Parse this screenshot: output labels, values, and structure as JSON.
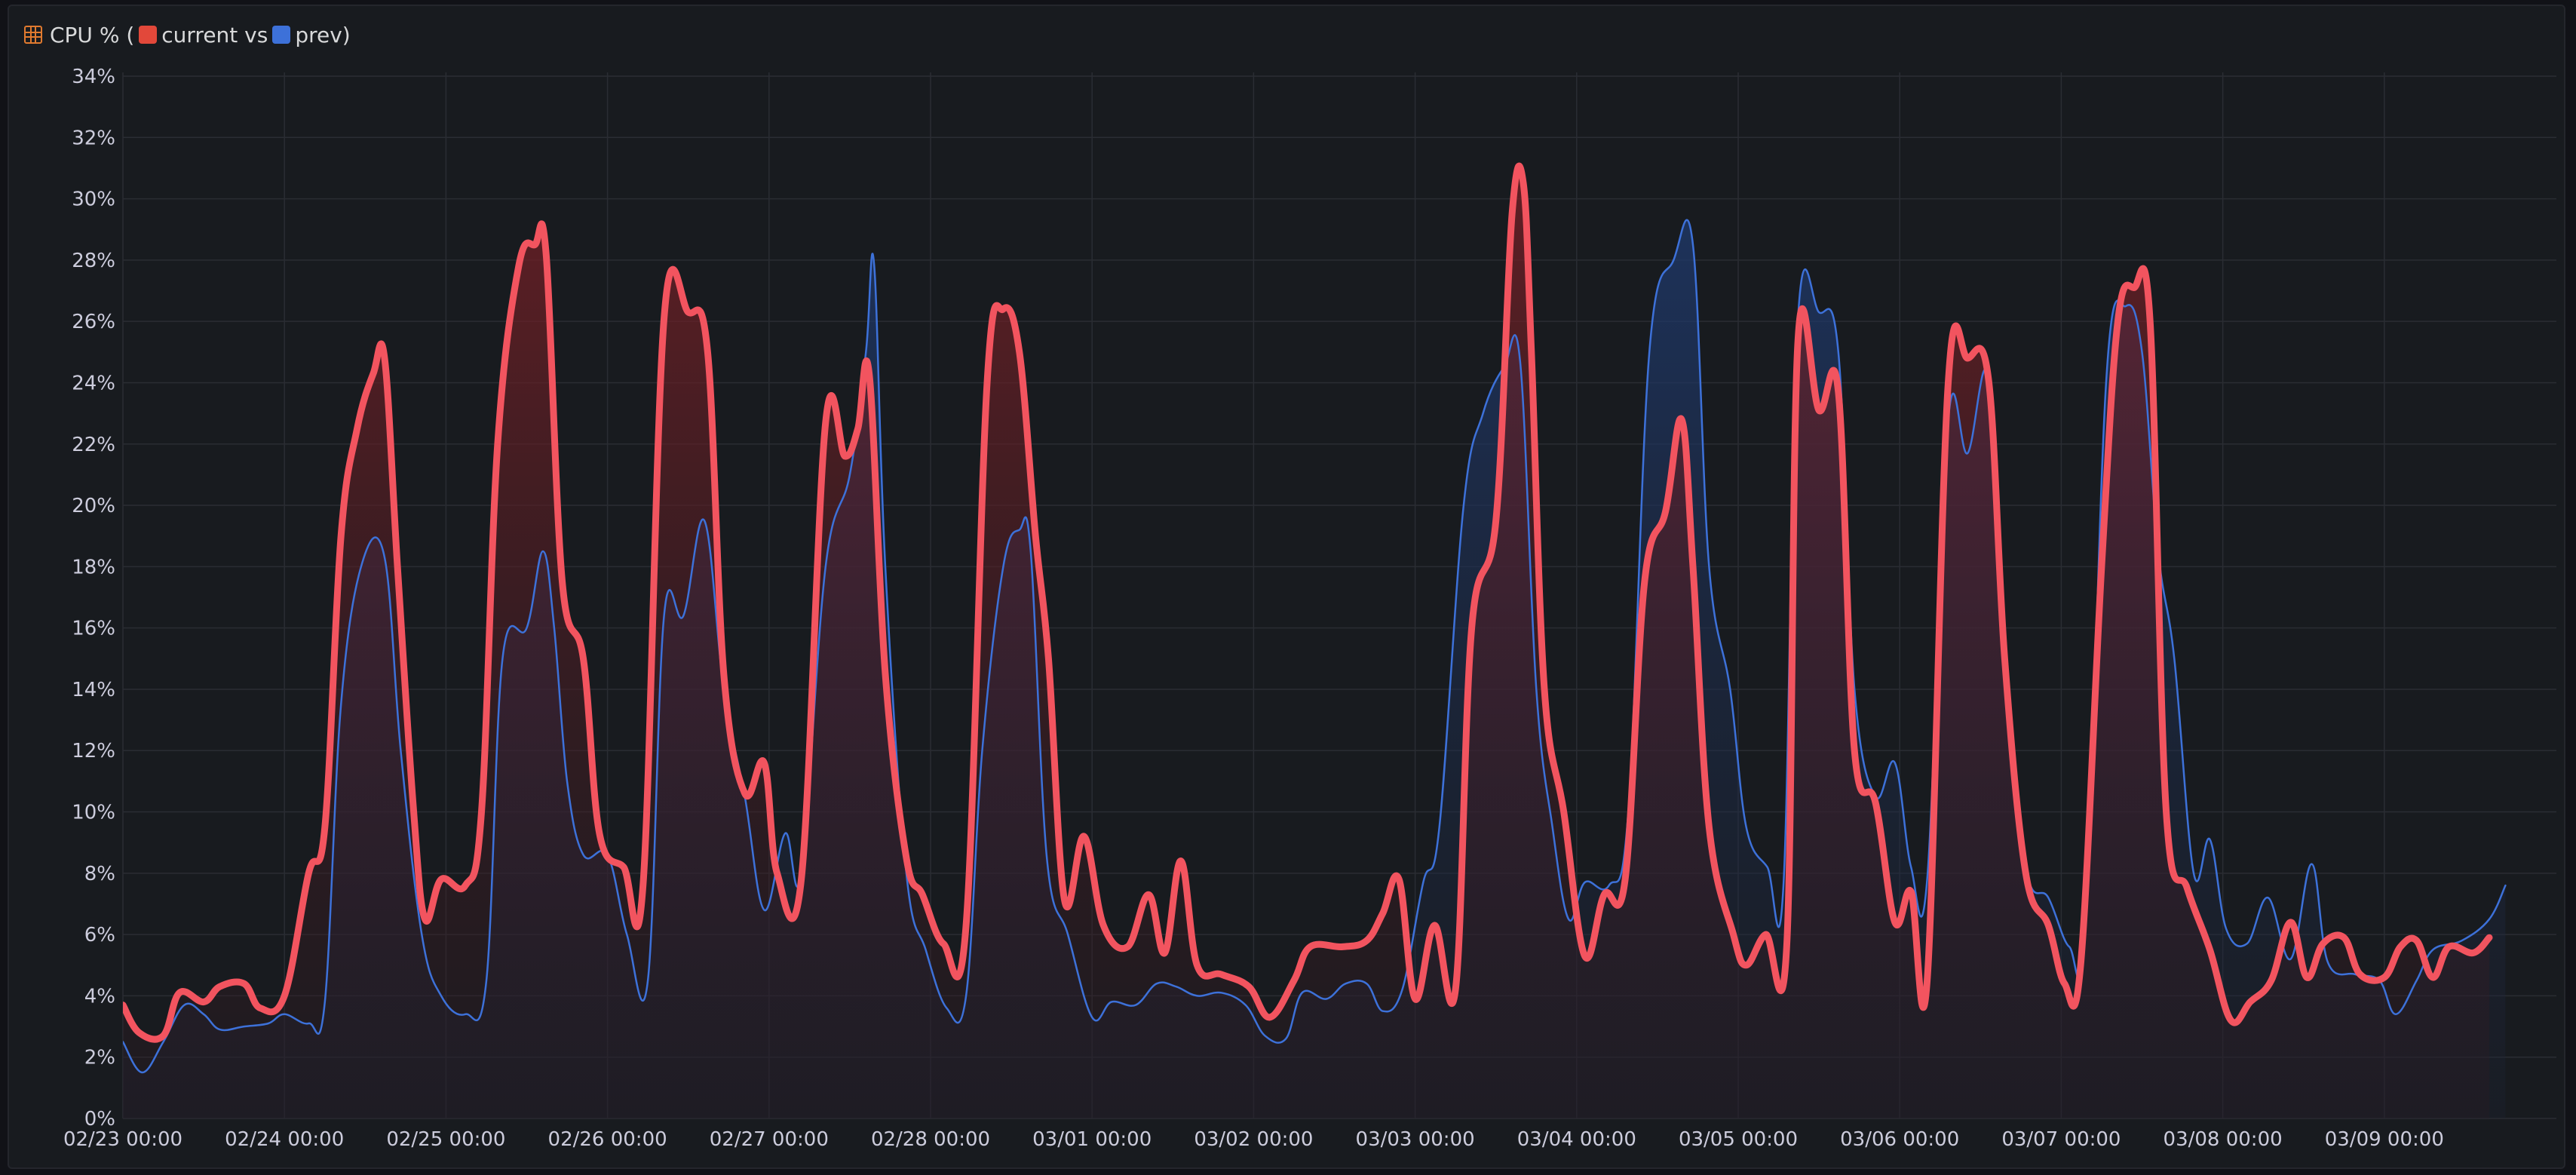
{
  "header": {
    "title_prefix": "CPU % (",
    "series_current_label": "current vs",
    "series_prev_label": "prev)",
    "title_icon": "panel-icon"
  },
  "chart_data": {
    "type": "area",
    "title": "CPU % (current vs prev)",
    "xlabel": "",
    "ylabel": "",
    "ylim": [
      0,
      34
    ],
    "y_ticks": [
      0,
      2,
      4,
      6,
      8,
      10,
      12,
      14,
      16,
      18,
      20,
      22,
      24,
      26,
      28,
      30,
      32,
      34
    ],
    "y_tick_labels": [
      "0%",
      "2%",
      "4%",
      "6%",
      "8%",
      "10%",
      "12%",
      "14%",
      "16%",
      "18%",
      "20%",
      "22%",
      "24%",
      "26%",
      "28%",
      "30%",
      "32%",
      "34%"
    ],
    "x_unit": "days since 02/23 00:00",
    "xlim": [
      0,
      14.9
    ],
    "x_ticks": [
      0,
      1,
      2,
      3,
      4,
      5,
      6,
      7,
      8,
      9,
      10,
      11,
      12,
      13,
      14
    ],
    "x_tick_labels": [
      "02/23 00:00",
      "02/24 00:00",
      "02/25 00:00",
      "02/26 00:00",
      "02/27 00:00",
      "02/28 00:00",
      "03/01 00:00",
      "03/02 00:00",
      "03/03 00:00",
      "03/04 00:00",
      "03/05 00:00",
      "03/06 00:00",
      "03/07 00:00",
      "03/08 00:00",
      "03/09 00:00"
    ],
    "grid": true,
    "legend": "title",
    "colors": {
      "current": "#f2545f",
      "current_fill_top": "#7a2026",
      "prev": "#3d71d9",
      "prev_fill_top": "#1f3a6e",
      "grid": "#2a2d33",
      "background": "#181b1f"
    },
    "series": [
      {
        "name": "current",
        "points": [
          [
            0.0,
            3.7
          ],
          [
            0.1,
            2.8
          ],
          [
            0.25,
            2.7
          ],
          [
            0.35,
            4.1
          ],
          [
            0.5,
            3.8
          ],
          [
            0.6,
            4.3
          ],
          [
            0.75,
            4.4
          ],
          [
            0.85,
            3.6
          ],
          [
            1.0,
            4.0
          ],
          [
            1.15,
            8.0
          ],
          [
            1.25,
            9.5
          ],
          [
            1.35,
            19.0
          ],
          [
            1.45,
            22.5
          ],
          [
            1.55,
            24.3
          ],
          [
            1.62,
            24.8
          ],
          [
            1.7,
            18.0
          ],
          [
            1.8,
            10.0
          ],
          [
            1.87,
            6.5
          ],
          [
            1.97,
            7.8
          ],
          [
            2.12,
            7.6
          ],
          [
            2.22,
            10.0
          ],
          [
            2.32,
            22.0
          ],
          [
            2.45,
            27.8
          ],
          [
            2.55,
            28.5
          ],
          [
            2.62,
            28.2
          ],
          [
            2.72,
            17.5
          ],
          [
            2.85,
            15.0
          ],
          [
            2.95,
            9.3
          ],
          [
            3.1,
            8.2
          ],
          [
            3.22,
            7.6
          ],
          [
            3.35,
            26.1
          ],
          [
            3.5,
            26.3
          ],
          [
            3.62,
            25.0
          ],
          [
            3.72,
            14.5
          ],
          [
            3.85,
            10.6
          ],
          [
            3.97,
            11.6
          ],
          [
            4.05,
            8.0
          ],
          [
            4.2,
            7.8
          ],
          [
            4.35,
            22.7
          ],
          [
            4.47,
            21.6
          ],
          [
            4.55,
            22.5
          ],
          [
            4.62,
            24.3
          ],
          [
            4.72,
            14.5
          ],
          [
            4.85,
            8.5
          ],
          [
            4.95,
            7.3
          ],
          [
            5.08,
            5.7
          ],
          [
            5.22,
            6.3
          ],
          [
            5.35,
            24.0
          ],
          [
            5.45,
            26.4
          ],
          [
            5.55,
            25.0
          ],
          [
            5.65,
            19.0
          ],
          [
            5.73,
            15.0
          ],
          [
            5.83,
            7.1
          ],
          [
            5.95,
            9.2
          ],
          [
            6.07,
            6.3
          ],
          [
            6.22,
            5.6
          ],
          [
            6.35,
            7.3
          ],
          [
            6.45,
            5.4
          ],
          [
            6.55,
            8.4
          ],
          [
            6.65,
            5.0
          ],
          [
            6.8,
            4.7
          ],
          [
            6.97,
            4.3
          ],
          [
            7.1,
            3.3
          ],
          [
            7.25,
            4.5
          ],
          [
            7.35,
            5.6
          ],
          [
            7.55,
            5.6
          ],
          [
            7.7,
            5.8
          ],
          [
            7.8,
            6.7
          ],
          [
            7.9,
            7.8
          ],
          [
            8.0,
            3.9
          ],
          [
            8.12,
            6.3
          ],
          [
            8.25,
            4.2
          ],
          [
            8.35,
            16.0
          ],
          [
            8.5,
            19.5
          ],
          [
            8.6,
            29.5
          ],
          [
            8.67,
            30.5
          ],
          [
            8.72,
            25.0
          ],
          [
            8.8,
            14.0
          ],
          [
            8.92,
            10.0
          ],
          [
            9.05,
            5.3
          ],
          [
            9.17,
            7.3
          ],
          [
            9.3,
            7.8
          ],
          [
            9.42,
            17.5
          ],
          [
            9.55,
            19.8
          ],
          [
            9.65,
            22.8
          ],
          [
            9.72,
            18.0
          ],
          [
            9.82,
            9.5
          ],
          [
            9.97,
            6.0
          ],
          [
            10.05,
            5.0
          ],
          [
            10.17,
            6.0
          ],
          [
            10.3,
            5.6
          ],
          [
            10.37,
            25.4
          ],
          [
            10.5,
            23.1
          ],
          [
            10.62,
            23.7
          ],
          [
            10.72,
            12.0
          ],
          [
            10.85,
            10.3
          ],
          [
            10.97,
            6.4
          ],
          [
            11.07,
            7.4
          ],
          [
            11.17,
            4.5
          ],
          [
            11.3,
            24.0
          ],
          [
            11.42,
            24.8
          ],
          [
            11.55,
            24.1
          ],
          [
            11.65,
            15.0
          ],
          [
            11.78,
            8.0
          ],
          [
            11.92,
            6.3
          ],
          [
            12.02,
            4.4
          ],
          [
            12.12,
            5.0
          ],
          [
            12.25,
            18.0
          ],
          [
            12.35,
            26.0
          ],
          [
            12.45,
            27.1
          ],
          [
            12.55,
            26.0
          ],
          [
            12.65,
            10.0
          ],
          [
            12.78,
            7.5
          ],
          [
            12.92,
            5.5
          ],
          [
            13.05,
            3.2
          ],
          [
            13.17,
            3.8
          ],
          [
            13.3,
            4.5
          ],
          [
            13.42,
            6.4
          ],
          [
            13.52,
            4.6
          ],
          [
            13.62,
            5.7
          ],
          [
            13.75,
            5.9
          ],
          [
            13.85,
            4.7
          ],
          [
            14.0,
            4.6
          ],
          [
            14.1,
            5.6
          ],
          [
            14.2,
            5.8
          ],
          [
            14.3,
            4.6
          ],
          [
            14.4,
            5.6
          ],
          [
            14.55,
            5.4
          ],
          [
            14.65,
            5.9
          ]
        ]
      },
      {
        "name": "prev",
        "points": [
          [
            0.0,
            2.5
          ],
          [
            0.12,
            1.5
          ],
          [
            0.25,
            2.5
          ],
          [
            0.38,
            3.7
          ],
          [
            0.5,
            3.4
          ],
          [
            0.6,
            2.9
          ],
          [
            0.75,
            3.0
          ],
          [
            0.9,
            3.1
          ],
          [
            1.0,
            3.4
          ],
          [
            1.15,
            3.1
          ],
          [
            1.25,
            3.8
          ],
          [
            1.35,
            13.5
          ],
          [
            1.48,
            18.1
          ],
          [
            1.62,
            18.3
          ],
          [
            1.72,
            12.0
          ],
          [
            1.85,
            6.0
          ],
          [
            1.97,
            4.0
          ],
          [
            2.12,
            3.4
          ],
          [
            2.25,
            4.5
          ],
          [
            2.35,
            15.0
          ],
          [
            2.5,
            16.0
          ],
          [
            2.6,
            18.5
          ],
          [
            2.67,
            16.0
          ],
          [
            2.75,
            11.0
          ],
          [
            2.85,
            8.6
          ],
          [
            3.0,
            8.6
          ],
          [
            3.12,
            6.0
          ],
          [
            3.25,
            4.5
          ],
          [
            3.35,
            16.4
          ],
          [
            3.47,
            16.4
          ],
          [
            3.6,
            19.5
          ],
          [
            3.72,
            14.0
          ],
          [
            3.85,
            10.5
          ],
          [
            3.97,
            6.8
          ],
          [
            4.1,
            9.3
          ],
          [
            4.2,
            8.0
          ],
          [
            4.35,
            18.0
          ],
          [
            4.5,
            21.0
          ],
          [
            4.6,
            25.0
          ],
          [
            4.65,
            27.9
          ],
          [
            4.72,
            18.0
          ],
          [
            4.85,
            8.0
          ],
          [
            4.97,
            5.5
          ],
          [
            5.1,
            3.6
          ],
          [
            5.22,
            4.0
          ],
          [
            5.32,
            12.0
          ],
          [
            5.45,
            18.0
          ],
          [
            5.55,
            19.2
          ],
          [
            5.62,
            18.5
          ],
          [
            5.72,
            8.5
          ],
          [
            5.85,
            6.0
          ],
          [
            6.0,
            3.3
          ],
          [
            6.12,
            3.8
          ],
          [
            6.27,
            3.7
          ],
          [
            6.4,
            4.4
          ],
          [
            6.52,
            4.3
          ],
          [
            6.65,
            4.0
          ],
          [
            6.8,
            4.1
          ],
          [
            6.95,
            3.7
          ],
          [
            7.07,
            2.7
          ],
          [
            7.2,
            2.6
          ],
          [
            7.3,
            4.1
          ],
          [
            7.45,
            3.9
          ],
          [
            7.57,
            4.4
          ],
          [
            7.7,
            4.4
          ],
          [
            7.8,
            3.5
          ],
          [
            7.92,
            4.2
          ],
          [
            8.05,
            7.7
          ],
          [
            8.15,
            9.5
          ],
          [
            8.3,
            20.0
          ],
          [
            8.42,
            23.0
          ],
          [
            8.55,
            24.5
          ],
          [
            8.65,
            24.7
          ],
          [
            8.75,
            14.0
          ],
          [
            8.85,
            9.5
          ],
          [
            8.95,
            6.5
          ],
          [
            9.05,
            7.7
          ],
          [
            9.2,
            7.6
          ],
          [
            9.32,
            10.0
          ],
          [
            9.45,
            25.0
          ],
          [
            9.6,
            28.0
          ],
          [
            9.72,
            28.5
          ],
          [
            9.82,
            18.0
          ],
          [
            9.95,
            14.0
          ],
          [
            10.05,
            9.5
          ],
          [
            10.18,
            8.2
          ],
          [
            10.28,
            7.6
          ],
          [
            10.37,
            26.1
          ],
          [
            10.5,
            26.3
          ],
          [
            10.62,
            25.0
          ],
          [
            10.72,
            14.0
          ],
          [
            10.85,
            10.5
          ],
          [
            10.97,
            11.6
          ],
          [
            11.07,
            8.2
          ],
          [
            11.17,
            7.8
          ],
          [
            11.3,
            22.8
          ],
          [
            11.42,
            21.7
          ],
          [
            11.55,
            24.2
          ],
          [
            11.65,
            15.0
          ],
          [
            11.78,
            8.2
          ],
          [
            11.92,
            7.2
          ],
          [
            12.05,
            5.6
          ],
          [
            12.15,
            6.3
          ],
          [
            12.28,
            24.2
          ],
          [
            12.4,
            26.5
          ],
          [
            12.5,
            25.0
          ],
          [
            12.6,
            18.5
          ],
          [
            12.7,
            15.0
          ],
          [
            12.82,
            8.0
          ],
          [
            12.92,
            9.1
          ],
          [
            13.02,
            6.2
          ],
          [
            13.15,
            5.7
          ],
          [
            13.28,
            7.2
          ],
          [
            13.42,
            5.2
          ],
          [
            13.55,
            8.3
          ],
          [
            13.65,
            5.1
          ],
          [
            13.82,
            4.7
          ],
          [
            13.97,
            4.5
          ],
          [
            14.07,
            3.4
          ],
          [
            14.2,
            4.5
          ],
          [
            14.3,
            5.5
          ],
          [
            14.48,
            5.8
          ],
          [
            14.65,
            6.5
          ],
          [
            14.75,
            7.6
          ]
        ]
      }
    ]
  }
}
